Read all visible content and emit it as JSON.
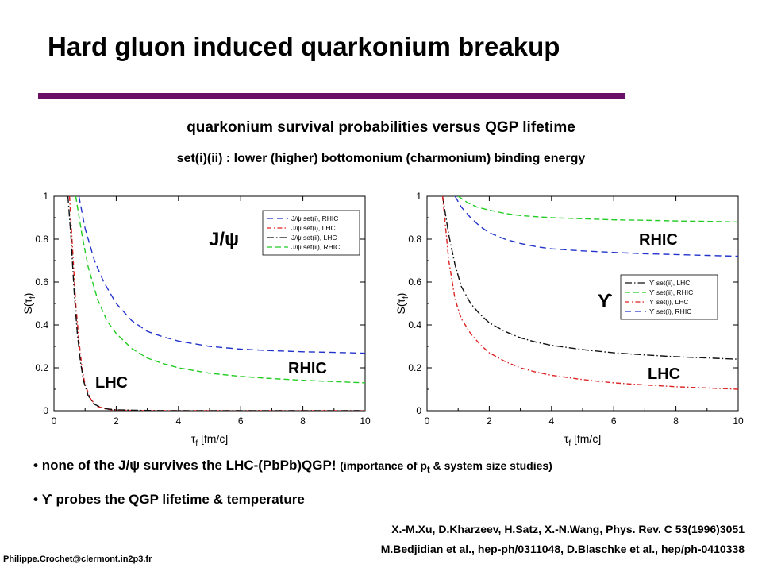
{
  "slide": {
    "title": "Hard gluon induced quarkonium breakup",
    "rule_color": "#6a1167",
    "subtitle1": "quarkonium survival probabilities versus QGP lifetime",
    "subtitle2": "set(i)(ii) : lower (higher) bottomonium (charmonium) binding energy",
    "bullet1_main": "none of the J/ψ survives the LHC-(PbPb)QGP!",
    "bullet1_note_pre": "(importance of p",
    "bullet1_note_sub": "t",
    "bullet1_note_post": " & system size studies)",
    "bullet2": "ϒ probes the QGP lifetime & temperature",
    "bullet_glyph": "•",
    "ref1": "X.-M.Xu, D.Kharzeev, H.Satz, X.-N.Wang, Phys. Rev. C 53(1996)3051",
    "ref2": "M.Bedjidian et al., hep-ph/0311048, D.Blaschke et al., hep/ph-0410338",
    "email": "Philippe.Crochet@clermont.in2p3.fr"
  },
  "chart_data": [
    {
      "type": "line",
      "panel": "J/psi",
      "xlabel": "τf [fm/c]",
      "ylabel": "S(τf)",
      "xlim": [
        0,
        10
      ],
      "ylim": [
        0,
        1
      ],
      "xticks": [
        "0",
        "2",
        "4",
        "6",
        "8",
        "10"
      ],
      "yticks": [
        "0",
        "0.2",
        "0.4",
        "0.6",
        "0.8",
        "1"
      ],
      "annotations": [
        "J/ψ",
        "RHIC",
        "LHC"
      ],
      "legend_position": "top-right",
      "series": [
        {
          "name": "J/ψ set(i), RHIC",
          "color": "#2233cc",
          "dash": "8,5",
          "x": [
            0.8,
            1,
            1.3,
            1.6,
            2,
            2.5,
            3,
            3.5,
            4,
            5,
            6,
            7,
            8,
            9,
            10
          ],
          "y": [
            1.0,
            0.85,
            0.7,
            0.6,
            0.5,
            0.42,
            0.37,
            0.345,
            0.325,
            0.3,
            0.287,
            0.28,
            0.275,
            0.272,
            0.268
          ]
        },
        {
          "name": "J/ψ set(i), LHC",
          "color": "#dd2222",
          "dash": "6,3,1.5,3",
          "x": [
            0.5,
            0.6,
            0.7,
            0.8,
            0.9,
            1.0,
            1.2,
            1.4,
            1.7,
            2,
            3,
            4,
            6,
            8,
            10
          ],
          "y": [
            1.0,
            0.75,
            0.5,
            0.33,
            0.2,
            0.12,
            0.05,
            0.02,
            0.007,
            0.003,
            0.0,
            0.0,
            0.0,
            0.0,
            0.0
          ]
        },
        {
          "name": "J/ψ set(ii), LHC",
          "color": "#111111",
          "dash": "9,3,1.5,3",
          "x": [
            0.45,
            0.55,
            0.65,
            0.75,
            0.85,
            0.95,
            1.1,
            1.3,
            1.6,
            2,
            3,
            4,
            6,
            8,
            10
          ],
          "y": [
            1.0,
            0.8,
            0.55,
            0.36,
            0.23,
            0.14,
            0.07,
            0.03,
            0.01,
            0.004,
            0.001,
            0.0,
            0.0,
            0.0,
            0.0
          ]
        },
        {
          "name": "J/ψ set(ii), RHIC",
          "color": "#22cc22",
          "dash": "7,4",
          "x": [
            0.7,
            0.9,
            1.1,
            1.4,
            1.7,
            2,
            2.5,
            3,
            3.5,
            4,
            5,
            6,
            7,
            8,
            9,
            10
          ],
          "y": [
            1.0,
            0.82,
            0.67,
            0.52,
            0.42,
            0.36,
            0.29,
            0.245,
            0.22,
            0.2,
            0.175,
            0.16,
            0.15,
            0.142,
            0.136,
            0.13
          ]
        }
      ]
    },
    {
      "type": "line",
      "panel": "Upsilon",
      "xlabel": "τf [fm/c]",
      "ylabel": "S(τf)",
      "xlim": [
        0,
        10
      ],
      "ylim": [
        0,
        1
      ],
      "xticks": [
        "0",
        "2",
        "4",
        "6",
        "8",
        "10"
      ],
      "yticks": [
        "0",
        "0.2",
        "0.4",
        "0.6",
        "0.8",
        "1"
      ],
      "annotations": [
        "RHIC",
        "ϒ",
        "LHC"
      ],
      "legend_position": "center-right",
      "series": [
        {
          "name": "ϒ set(ii), LHC",
          "color": "#111111",
          "dash": "9,3,1.5,3",
          "x": [
            0.5,
            0.7,
            0.9,
            1.1,
            1.4,
            1.7,
            2,
            2.5,
            3,
            3.5,
            4,
            5,
            6,
            7,
            8,
            9,
            10
          ],
          "y": [
            1.0,
            0.82,
            0.68,
            0.58,
            0.5,
            0.45,
            0.41,
            0.37,
            0.34,
            0.32,
            0.305,
            0.285,
            0.27,
            0.26,
            0.252,
            0.246,
            0.24
          ]
        },
        {
          "name": "ϒ set(ii), RHIC",
          "color": "#22cc22",
          "dash": "7,4",
          "x": [
            1.0,
            1.3,
            1.6,
            2,
            2.5,
            3,
            3.5,
            4,
            5,
            6,
            7,
            8,
            9,
            10
          ],
          "y": [
            1.0,
            0.97,
            0.95,
            0.935,
            0.92,
            0.91,
            0.905,
            0.9,
            0.895,
            0.89,
            0.888,
            0.885,
            0.883,
            0.88
          ]
        },
        {
          "name": "ϒ set(i), LHC",
          "color": "#dd2222",
          "dash": "6,3,1.5,3",
          "x": [
            0.5,
            0.6,
            0.7,
            0.9,
            1.1,
            1.4,
            1.7,
            2,
            2.5,
            3,
            3.5,
            4,
            5,
            6,
            7,
            8,
            9,
            10
          ],
          "y": [
            1.0,
            0.85,
            0.7,
            0.52,
            0.43,
            0.36,
            0.31,
            0.27,
            0.23,
            0.2,
            0.18,
            0.165,
            0.145,
            0.13,
            0.12,
            0.112,
            0.106,
            0.1
          ]
        },
        {
          "name": "ϒ set(i), RHIC",
          "color": "#2233cc",
          "dash": "8,5",
          "x": [
            0.9,
            1.1,
            1.4,
            1.7,
            2,
            2.5,
            3,
            3.5,
            4,
            5,
            6,
            7,
            8,
            9,
            10
          ],
          "y": [
            1.0,
            0.95,
            0.9,
            0.86,
            0.83,
            0.8,
            0.78,
            0.765,
            0.755,
            0.745,
            0.738,
            0.732,
            0.728,
            0.724,
            0.72
          ]
        }
      ]
    }
  ]
}
